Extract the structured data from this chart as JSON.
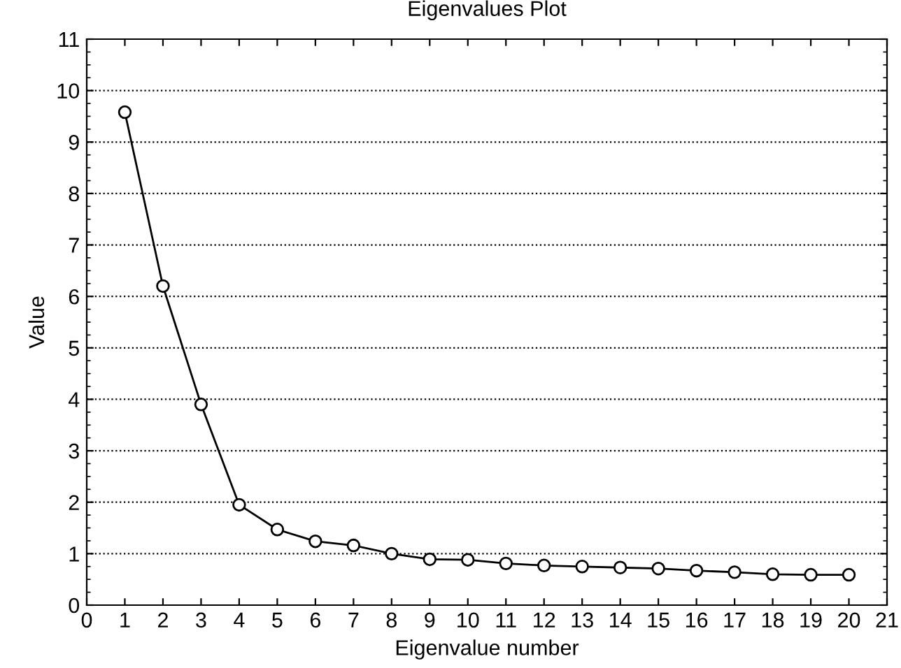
{
  "chart_data": {
    "type": "line",
    "title": "Eigenvalues Plot",
    "xlabel": "Eigenvalue number",
    "ylabel": "Value",
    "x": [
      1,
      2,
      3,
      4,
      5,
      6,
      7,
      8,
      9,
      10,
      11,
      12,
      13,
      14,
      15,
      16,
      17,
      18,
      19,
      20
    ],
    "series": [
      {
        "color": "#000000",
        "values": [
          9.58,
          6.2,
          3.9,
          1.95,
          1.47,
          1.24,
          1.16,
          1.0,
          0.89,
          0.88,
          0.81,
          0.77,
          0.75,
          0.73,
          0.71,
          0.67,
          0.64,
          0.6,
          0.59,
          0.59
        ]
      }
    ],
    "xlim": [
      0,
      21
    ],
    "xticks": [
      0,
      1,
      2,
      3,
      4,
      5,
      6,
      7,
      8,
      9,
      10,
      11,
      12,
      13,
      14,
      15,
      16,
      17,
      18,
      19,
      20,
      21
    ],
    "ylim": [
      0,
      11
    ],
    "yticks": [
      0,
      1,
      2,
      3,
      4,
      5,
      6,
      7,
      8,
      9,
      10,
      11
    ],
    "grid": "y",
    "marker": "circle",
    "line_style": "solid"
  }
}
